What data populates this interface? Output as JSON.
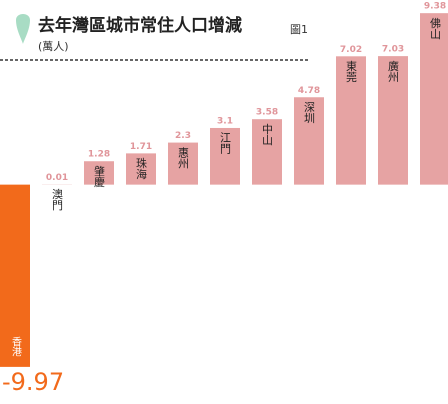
{
  "chart_data": {
    "type": "bar",
    "title": "去年灣區城市常住人口增減",
    "subtitle": "(萬人)",
    "figure_label": "圖1",
    "categories": [
      "香港",
      "澳門",
      "肇慶",
      "珠海",
      "惠州",
      "江門",
      "中山",
      "深圳",
      "東莞",
      "廣州",
      "佛山"
    ],
    "values": [
      -9.97,
      0.01,
      1.28,
      1.71,
      2.3,
      3.1,
      3.58,
      4.78,
      7.02,
      7.03,
      9.38
    ],
    "colors": [
      "#f26a1b",
      "#e6a3a3",
      "#e6a3a3",
      "#e6a3a3",
      "#e6a3a3",
      "#e6a3a3",
      "#e6a3a3",
      "#e6a3a3",
      "#e6a3a3",
      "#e6a3a3",
      "#e6a3a3"
    ],
    "ylim": [
      -12,
      10.1
    ]
  }
}
